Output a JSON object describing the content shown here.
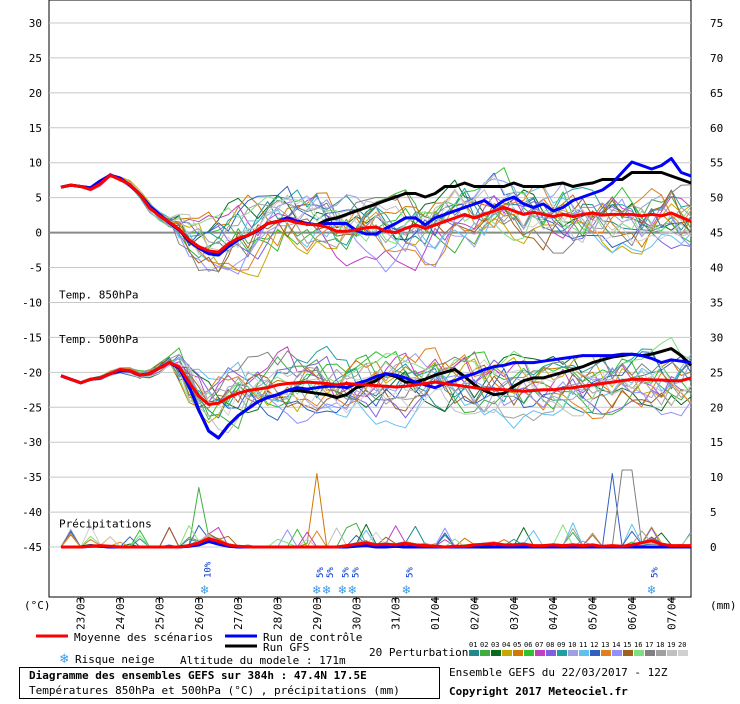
{
  "chart_data": {
    "type": "line",
    "left_axis": {
      "unit": "(°C)",
      "ticks": [
        30,
        25,
        20,
        15,
        10,
        5,
        0,
        -5,
        -10,
        -15,
        -20,
        -25,
        -30,
        -35,
        -40,
        -45
      ]
    },
    "right_axis": {
      "unit": "(mm)",
      "ticks": [
        75,
        70,
        65,
        60,
        55,
        50,
        45,
        40,
        35,
        30,
        25,
        20,
        15,
        10,
        5,
        0
      ]
    },
    "dates": [
      "23/03",
      "24/03",
      "25/03",
      "26/03",
      "27/03",
      "28/03",
      "29/03",
      "30/03",
      "31/03",
      "01/04",
      "02/04",
      "03/04",
      "04/04",
      "05/04",
      "06/04",
      "07/04"
    ],
    "x_steps": 64,
    "colors": {
      "mean": "#ff0000",
      "control": "#0000ff",
      "gfs": "#000000",
      "snow": "#3d9be9",
      "perturbations": [
        "#1f8a8a",
        "#3fae3f",
        "#0a6a20",
        "#c8a800",
        "#d07800",
        "#30c030",
        "#c040c0",
        "#8060e0",
        "#20a0a0",
        "#a0a0e0",
        "#60c0f0",
        "#3060c0",
        "#e08020",
        "#9090ff",
        "#a06020",
        "#80e080",
        "#808080",
        "#a0a0a0",
        "#c0c0c0",
        "#d0d0d0"
      ]
    },
    "t850": {
      "label": "Temp. 850hPa",
      "mean": [
        6.5,
        6.8,
        6.6,
        6.2,
        7,
        8.2,
        7.6,
        6.9,
        5.5,
        3.5,
        2.4,
        1.5,
        0.5,
        -1,
        -2,
        -2.6,
        -2.8,
        -1.6,
        -0.8,
        -0.4,
        0.4,
        1.3,
        1.6,
        1.8,
        1.4,
        1.2,
        1.1,
        0.8,
        0.2,
        0.2,
        0.4,
        0.7,
        0.8,
        0.2,
        0,
        0.6,
        1.1,
        0.6,
        1.1,
        1.6,
        2.1,
        2.6,
        2.1,
        2.6,
        3.1,
        3.6,
        3.1,
        2.6,
        2.9,
        2.6,
        2.3,
        2.6,
        2.3,
        2.6,
        2.8,
        2.5,
        2.6,
        2.6,
        2.6,
        2.4,
        2.6,
        2.4,
        2.8,
        2.2,
        1.6
      ],
      "control": [
        6.5,
        6.8,
        6.6,
        6.4,
        7.4,
        8.2,
        7.8,
        6.8,
        5.5,
        3.8,
        2.6,
        1.4,
        0.4,
        -1.2,
        -2.2,
        -3,
        -3.2,
        -2,
        -1,
        -0.4,
        0.3,
        1.3,
        1.6,
        2.1,
        1.6,
        1.3,
        1.1,
        1.3,
        1.3,
        1.3,
        0.3,
        -0.2,
        -0.2,
        0.6,
        1.3,
        2.1,
        2.1,
        1.1,
        2.1,
        2.6,
        3.1,
        3.6,
        4.1,
        4.6,
        3.6,
        4.6,
        5.1,
        4.1,
        3.6,
        4.1,
        3.1,
        3.6,
        4.6,
        5.1,
        5.6,
        6.1,
        7.1,
        8.6,
        10.1,
        9.6,
        9.1,
        9.6,
        10.6,
        8.6,
        8.1
      ],
      "gfs": [
        6.5,
        6.8,
        6.6,
        6.4,
        7.4,
        8.2,
        7.8,
        6.8,
        5.5,
        3.8,
        2.6,
        1.4,
        0.4,
        -1.2,
        -2.2,
        -3,
        -3.2,
        -2,
        -1,
        -0.4,
        0.3,
        1.3,
        1.6,
        2.1,
        1.6,
        1.3,
        1.1,
        1.8,
        2.1,
        2.6,
        3.1,
        3.6,
        4.1,
        4.6,
        5.1,
        5.6,
        5.6,
        5.1,
        5.6,
        6.6,
        6.6,
        7.1,
        6.6,
        6.6,
        6.6,
        6.6,
        7.1,
        6.6,
        6.6,
        6.6,
        6.9,
        7.1,
        6.6,
        6.9,
        7.1,
        7.6,
        7.6,
        7.6,
        8.6,
        8.6,
        8.6,
        8.6,
        8.1,
        7.6,
        7.1
      ]
    },
    "t500": {
      "label": "Temp. 500hPa",
      "mean": [
        -20.5,
        -21,
        -21.5,
        -21,
        -20.8,
        -20.2,
        -19.6,
        -19.8,
        -20.4,
        -20.2,
        -19.4,
        -18.6,
        -19.2,
        -21.4,
        -23.4,
        -24.6,
        -24.4,
        -23.6,
        -23,
        -22.6,
        -22.4,
        -22.2,
        -21.8,
        -21.6,
        -21.5,
        -21.4,
        -21.5,
        -21.6,
        -21.8,
        -21.6,
        -21.7,
        -21.8,
        -21.9,
        -22,
        -22.1,
        -22,
        -21.8,
        -21.6,
        -21.4,
        -21.6,
        -21.8,
        -22,
        -22.2,
        -22.4,
        -22.4,
        -22.5,
        -22.6,
        -22.7,
        -22.6,
        -22.5,
        -22.5,
        -22.3,
        -22.2,
        -22,
        -21.8,
        -21.6,
        -21.4,
        -21.2,
        -21,
        -21,
        -21.1,
        -21.1,
        -21.2,
        -21.2,
        -20.8
      ],
      "control": [
        -20.5,
        -21,
        -21.5,
        -21,
        -20.8,
        -20.2,
        -19.8,
        -19.8,
        -20.4,
        -20.2,
        -19.4,
        -18.6,
        -19.4,
        -22,
        -25.4,
        -28.4,
        -29.4,
        -27.6,
        -26.2,
        -25.2,
        -24.2,
        -23.6,
        -23.2,
        -22.6,
        -22.2,
        -22.4,
        -22.2,
        -22,
        -22,
        -22.2,
        -21.6,
        -21.2,
        -20.6,
        -20.2,
        -20.4,
        -20.8,
        -21.4,
        -21.8,
        -22.2,
        -21.6,
        -21.2,
        -20.6,
        -20.2,
        -19.6,
        -19.2,
        -19,
        -18.6,
        -18.6,
        -18.6,
        -18.4,
        -18.2,
        -18,
        -17.8,
        -17.6,
        -17.6,
        -17.6,
        -17.6,
        -17.4,
        -17.4,
        -17.6,
        -18,
        -18.6,
        -18.2,
        -18.4,
        -18.6
      ],
      "gfs": [
        -20.5,
        -21,
        -21.5,
        -21,
        -20.8,
        -20.2,
        -19.8,
        -19.8,
        -20.4,
        -20.2,
        -19.4,
        -18.6,
        -19.4,
        -22,
        -25.4,
        -28.4,
        -29.4,
        -27.6,
        -26.2,
        -25.2,
        -24.2,
        -23.6,
        -23.2,
        -22.6,
        -22.6,
        -22.8,
        -23,
        -23.2,
        -23.6,
        -23.2,
        -22.2,
        -21.8,
        -21.2,
        -20.2,
        -20.6,
        -21.4,
        -21.4,
        -21,
        -20.4,
        -20,
        -19.6,
        -20.6,
        -21.8,
        -22.6,
        -23.2,
        -23,
        -22,
        -21.2,
        -20.8,
        -20.8,
        -20.4,
        -20,
        -19.6,
        -19.2,
        -18.6,
        -18.2,
        -17.8,
        -17.6,
        -17.4,
        -17.6,
        -17.4,
        -17,
        -16.6,
        -17.6,
        -19
      ]
    },
    "precip": {
      "label": "Précipitations",
      "mean": [
        0,
        0,
        0,
        0.1,
        0.2,
        0.1,
        0,
        0,
        0,
        0,
        0,
        0,
        0,
        0.2,
        0.6,
        1.2,
        0.8,
        0.3,
        0.1,
        0,
        0,
        0,
        0,
        0,
        0,
        0,
        0,
        0,
        0,
        0.2,
        0.4,
        0.6,
        0.3,
        0.4,
        0.3,
        0.5,
        0.3,
        0.2,
        0.1,
        0,
        0.1,
        0.1,
        0.3,
        0.4,
        0.5,
        0.3,
        0.3,
        0.4,
        0.2,
        0.2,
        0.3,
        0.2,
        0.3,
        0.2,
        0.3,
        0.1,
        0.2,
        0.1,
        0.3,
        0.6,
        0.9,
        0.4,
        0.2,
        0.2,
        0.2
      ],
      "control": [
        0,
        0,
        0,
        0.1,
        0.1,
        0,
        0,
        0,
        0,
        0,
        0,
        0,
        0,
        0.1,
        0.3,
        0.8,
        0.4,
        0.1,
        0,
        0,
        0,
        0,
        0,
        0,
        0,
        0,
        0,
        0,
        0,
        0,
        0.1,
        0.2,
        0,
        0,
        0.1,
        0,
        0,
        0,
        0,
        0,
        0,
        0,
        0,
        0.1,
        0,
        0,
        0,
        0,
        0,
        0,
        0,
        0,
        0,
        0,
        0,
        0,
        0,
        0,
        0,
        0,
        0,
        0,
        0,
        0,
        0
      ],
      "gfs": [
        0,
        0,
        0,
        0.2,
        0.1,
        0,
        0,
        0,
        0,
        0,
        0,
        0,
        0,
        0.2,
        0.4,
        1,
        0.5,
        0.2,
        0,
        0,
        0,
        0,
        0,
        0,
        0,
        0,
        0,
        0,
        0,
        0,
        0.3,
        0.5,
        0.2,
        0.1,
        0.1,
        0,
        0,
        0,
        0,
        0,
        0,
        0,
        0,
        0,
        0,
        0,
        0,
        0,
        0,
        0,
        0,
        0,
        0,
        0,
        0,
        0,
        0,
        0,
        0,
        0,
        0,
        0,
        0,
        0,
        0
      ]
    },
    "snow_markers": [
      {
        "step": 14.8,
        "label": "10%"
      },
      {
        "step": 26.2,
        "label": "5%"
      },
      {
        "step": 27.2,
        "label": "5%"
      },
      {
        "step": 28.8,
        "label": "5%"
      },
      {
        "step": 29.8,
        "label": "5%"
      },
      {
        "step": 35.3,
        "label": "5%"
      },
      {
        "step": 60.2,
        "label": "5%"
      }
    ],
    "legend": {
      "mean": "Moyenne des scénarios",
      "control": "Run de contrôle",
      "gfs": "Run GFS",
      "perturbations": "20 Perturbations",
      "pert_numbers": [
        "01",
        "02",
        "03",
        "04",
        "05",
        "06",
        "07",
        "08",
        "09",
        "10",
        "11",
        "12",
        "13",
        "14",
        "15",
        "16",
        "17",
        "18",
        "19",
        "20"
      ],
      "snow": "Risque neige",
      "altitude": "Altitude du modele : 171m"
    }
  },
  "info": {
    "title": "Diagramme des ensembles GEFS sur 384h : 47.4N 17.5E",
    "subtitle": "Températures 850hPa et 500hPa (°C) , précipitations (mm)",
    "run": "Ensemble GEFS du 22/03/2017 - 12Z",
    "copyright": "Copyright 2017 Meteociel.fr"
  }
}
